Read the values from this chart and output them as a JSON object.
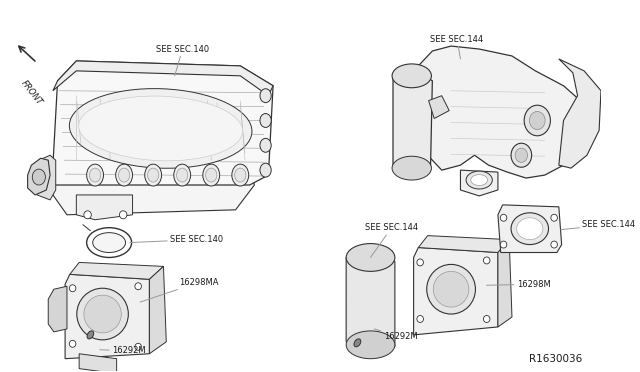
{
  "bg_color": "#ffffff",
  "line_color": "#333333",
  "gray_line": "#999999",
  "light_gray": "#bbbbbb",
  "text_color": "#1a1a1a",
  "doc_number": "R1630036",
  "labels": {
    "front": "FRONT",
    "see_sec_140_top": "SEE SEC.140",
    "see_sec_140_mid": "SEE SEC.140",
    "part_16298MA": "16298MA",
    "part_16292M_left": "16292M",
    "see_sec_144_top": "SEE SEC.144",
    "see_sec_144_mid": "SEE SEC.144",
    "see_sec_144_bot": "SEE SEC.144",
    "part_16298M": "16298M",
    "part_16292M_right": "16292M"
  }
}
